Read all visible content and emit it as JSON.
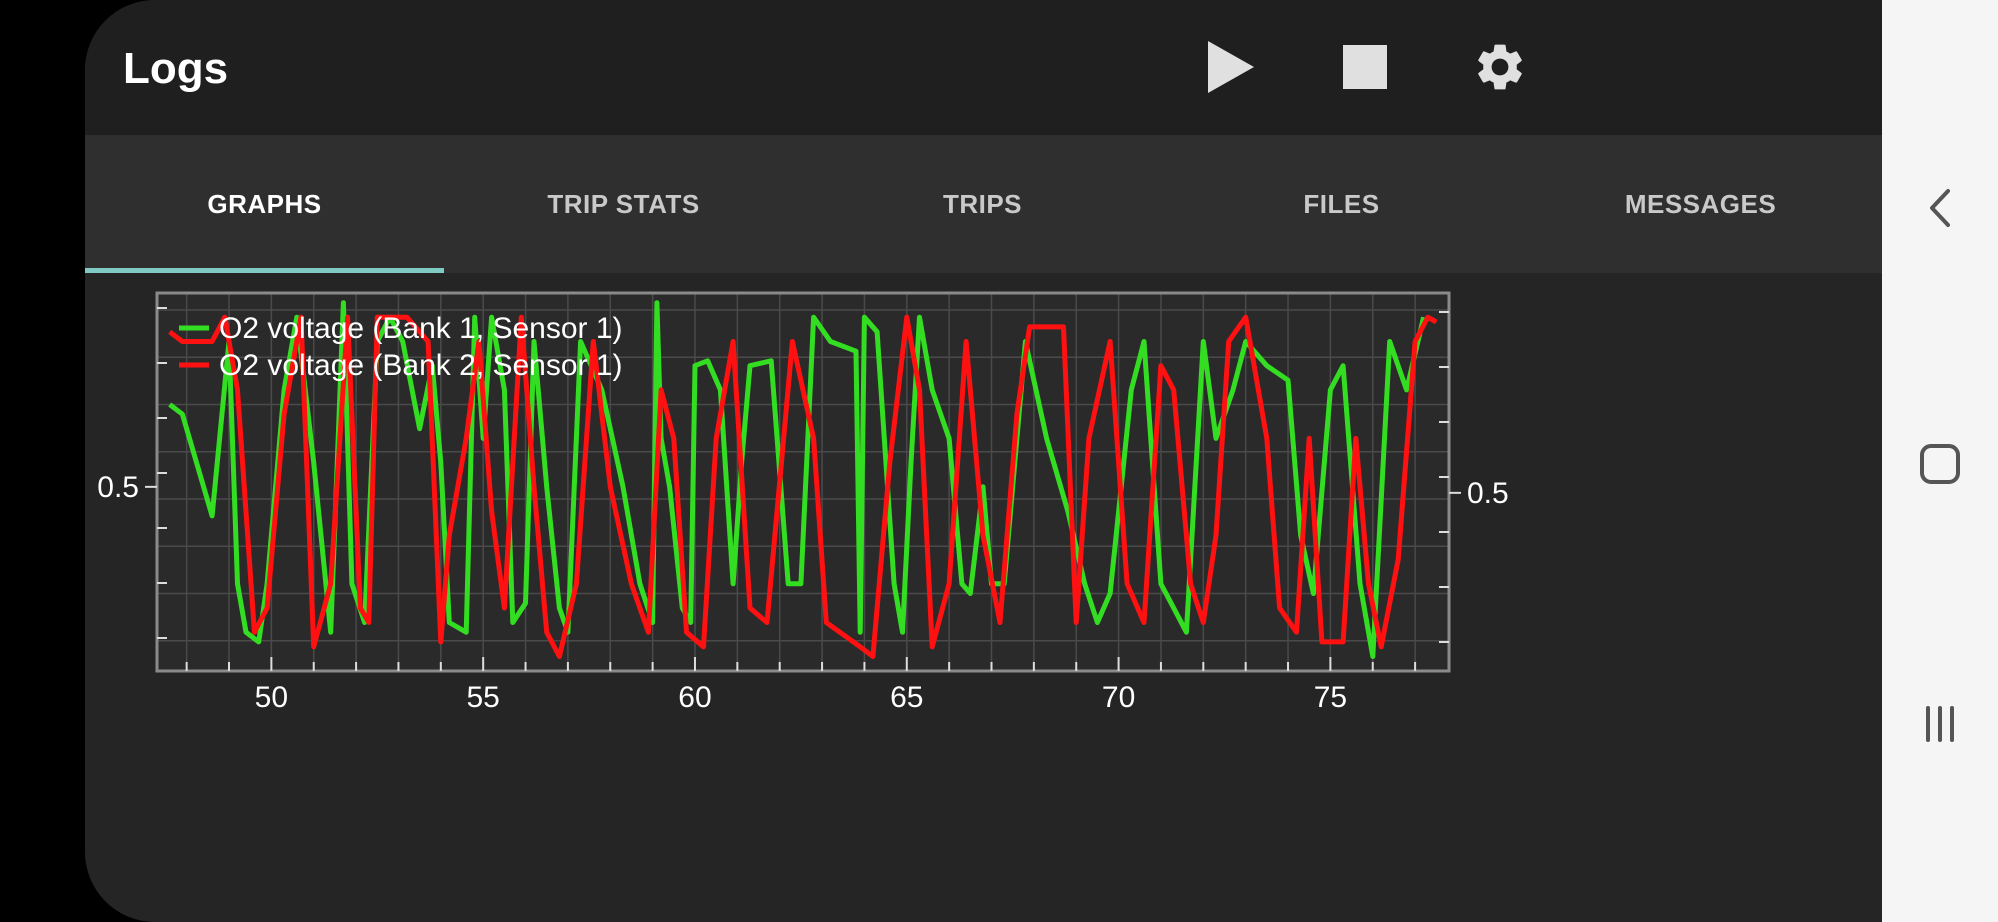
{
  "app": {
    "title": "Logs"
  },
  "actions": {
    "play": "play-icon",
    "stop": "stop-icon",
    "settings": "gear-icon"
  },
  "tabs": [
    {
      "label": "GRAPHS",
      "active": true
    },
    {
      "label": "TRIP STATS",
      "active": false
    },
    {
      "label": "TRIPS",
      "active": false
    },
    {
      "label": "FILES",
      "active": false
    },
    {
      "label": "MESSAGES",
      "active": false
    }
  ],
  "colors": {
    "accent": "#80cbc4",
    "series_green": "#33dd22",
    "series_red": "#ff1111",
    "background": "#252525"
  },
  "nav": {
    "back": "back-chevron-icon",
    "home": "home-square-icon",
    "recents": "recents-icon"
  },
  "chart_data": {
    "type": "line",
    "title": "",
    "xlabel": "",
    "ylabel": "",
    "xlim": [
      47.3,
      77.8
    ],
    "ylim": [
      0.12,
      0.9
    ],
    "x_ticks": [
      50,
      55,
      60,
      65,
      70,
      75
    ],
    "y_ticks_left": [
      0.5
    ],
    "y_ticks_right": [
      0.5
    ],
    "grid": true,
    "legend": "top-left",
    "series": [
      {
        "name": "O2 voltage (Bank 1, Sensor 1)",
        "color": "#33dd22",
        "points": [
          [
            47.6,
            0.67
          ],
          [
            47.9,
            0.65
          ],
          [
            48.6,
            0.44
          ],
          [
            49.0,
            0.8
          ],
          [
            49.2,
            0.3
          ],
          [
            49.4,
            0.2
          ],
          [
            49.7,
            0.18
          ],
          [
            49.9,
            0.3
          ],
          [
            50.3,
            0.7
          ],
          [
            50.6,
            0.85
          ],
          [
            51.0,
            0.55
          ],
          [
            51.4,
            0.2
          ],
          [
            51.7,
            0.88
          ],
          [
            51.9,
            0.3
          ],
          [
            52.2,
            0.22
          ],
          [
            52.5,
            0.8
          ],
          [
            52.8,
            0.85
          ],
          [
            53.1,
            0.8
          ],
          [
            53.5,
            0.62
          ],
          [
            53.8,
            0.75
          ],
          [
            54.0,
            0.55
          ],
          [
            54.2,
            0.22
          ],
          [
            54.6,
            0.2
          ],
          [
            54.8,
            0.85
          ],
          [
            55.0,
            0.6
          ],
          [
            55.2,
            0.85
          ],
          [
            55.5,
            0.7
          ],
          [
            55.7,
            0.22
          ],
          [
            56.0,
            0.26
          ],
          [
            56.2,
            0.8
          ],
          [
            56.5,
            0.5
          ],
          [
            56.8,
            0.25
          ],
          [
            57.0,
            0.2
          ],
          [
            57.3,
            0.8
          ],
          [
            57.8,
            0.7
          ],
          [
            58.3,
            0.5
          ],
          [
            58.7,
            0.3
          ],
          [
            59.0,
            0.22
          ],
          [
            59.1,
            0.88
          ],
          [
            59.2,
            0.6
          ],
          [
            59.4,
            0.5
          ],
          [
            59.7,
            0.25
          ],
          [
            59.9,
            0.22
          ],
          [
            60.0,
            0.75
          ],
          [
            60.3,
            0.76
          ],
          [
            60.6,
            0.7
          ],
          [
            60.9,
            0.3
          ],
          [
            61.1,
            0.55
          ],
          [
            61.3,
            0.75
          ],
          [
            61.8,
            0.76
          ],
          [
            62.2,
            0.3
          ],
          [
            62.5,
            0.3
          ],
          [
            62.8,
            0.85
          ],
          [
            63.2,
            0.8
          ],
          [
            63.8,
            0.78
          ],
          [
            63.9,
            0.2
          ],
          [
            64.0,
            0.85
          ],
          [
            64.3,
            0.82
          ],
          [
            64.7,
            0.3
          ],
          [
            64.9,
            0.2
          ],
          [
            65.1,
            0.55
          ],
          [
            65.3,
            0.85
          ],
          [
            65.6,
            0.7
          ],
          [
            66.0,
            0.6
          ],
          [
            66.3,
            0.3
          ],
          [
            66.5,
            0.28
          ],
          [
            66.8,
            0.5
          ],
          [
            67.0,
            0.3
          ],
          [
            67.3,
            0.3
          ],
          [
            67.8,
            0.8
          ],
          [
            68.3,
            0.6
          ],
          [
            68.8,
            0.45
          ],
          [
            69.2,
            0.3
          ],
          [
            69.5,
            0.22
          ],
          [
            69.8,
            0.28
          ],
          [
            70.3,
            0.7
          ],
          [
            70.6,
            0.8
          ],
          [
            71.0,
            0.3
          ],
          [
            71.3,
            0.25
          ],
          [
            71.6,
            0.2
          ],
          [
            72.0,
            0.8
          ],
          [
            72.3,
            0.6
          ],
          [
            72.7,
            0.7
          ],
          [
            73.0,
            0.8
          ],
          [
            73.5,
            0.75
          ],
          [
            74.0,
            0.72
          ],
          [
            74.3,
            0.4
          ],
          [
            74.6,
            0.28
          ],
          [
            75.0,
            0.7
          ],
          [
            75.3,
            0.75
          ],
          [
            75.7,
            0.3
          ],
          [
            76.0,
            0.15
          ],
          [
            76.4,
            0.8
          ],
          [
            76.8,
            0.7
          ],
          [
            77.2,
            0.85
          ]
        ]
      },
      {
        "name": "O2 voltage (Bank 2, Sensor 1)",
        "color": "#ff1111",
        "points": [
          [
            47.6,
            0.82
          ],
          [
            47.9,
            0.8
          ],
          [
            48.6,
            0.8
          ],
          [
            48.9,
            0.85
          ],
          [
            49.2,
            0.7
          ],
          [
            49.6,
            0.2
          ],
          [
            49.9,
            0.25
          ],
          [
            50.3,
            0.65
          ],
          [
            50.7,
            0.85
          ],
          [
            51.0,
            0.17
          ],
          [
            51.4,
            0.3
          ],
          [
            51.8,
            0.85
          ],
          [
            52.1,
            0.25
          ],
          [
            52.3,
            0.22
          ],
          [
            52.5,
            0.85
          ],
          [
            53.2,
            0.85
          ],
          [
            53.7,
            0.8
          ],
          [
            54.0,
            0.18
          ],
          [
            54.2,
            0.4
          ],
          [
            54.6,
            0.6
          ],
          [
            54.9,
            0.8
          ],
          [
            55.2,
            0.45
          ],
          [
            55.5,
            0.25
          ],
          [
            55.9,
            0.85
          ],
          [
            56.2,
            0.5
          ],
          [
            56.5,
            0.2
          ],
          [
            56.8,
            0.15
          ],
          [
            57.2,
            0.3
          ],
          [
            57.6,
            0.8
          ],
          [
            58.0,
            0.5
          ],
          [
            58.5,
            0.3
          ],
          [
            58.9,
            0.2
          ],
          [
            59.2,
            0.7
          ],
          [
            59.5,
            0.6
          ],
          [
            59.8,
            0.2
          ],
          [
            60.2,
            0.17
          ],
          [
            60.5,
            0.6
          ],
          [
            60.9,
            0.8
          ],
          [
            61.3,
            0.25
          ],
          [
            61.7,
            0.22
          ],
          [
            62.3,
            0.8
          ],
          [
            62.8,
            0.6
          ],
          [
            63.1,
            0.22
          ],
          [
            63.9,
            0.17
          ],
          [
            64.2,
            0.15
          ],
          [
            64.6,
            0.55
          ],
          [
            65.0,
            0.85
          ],
          [
            65.3,
            0.7
          ],
          [
            65.6,
            0.17
          ],
          [
            66.0,
            0.3
          ],
          [
            66.4,
            0.8
          ],
          [
            66.8,
            0.4
          ],
          [
            67.2,
            0.22
          ],
          [
            67.6,
            0.65
          ],
          [
            67.9,
            0.83
          ],
          [
            68.4,
            0.83
          ],
          [
            68.7,
            0.83
          ],
          [
            69.0,
            0.22
          ],
          [
            69.3,
            0.6
          ],
          [
            69.8,
            0.8
          ],
          [
            70.2,
            0.3
          ],
          [
            70.6,
            0.22
          ],
          [
            71.0,
            0.75
          ],
          [
            71.3,
            0.7
          ],
          [
            71.7,
            0.3
          ],
          [
            72.0,
            0.22
          ],
          [
            72.3,
            0.4
          ],
          [
            72.6,
            0.8
          ],
          [
            73.0,
            0.85
          ],
          [
            73.5,
            0.6
          ],
          [
            73.8,
            0.25
          ],
          [
            74.2,
            0.2
          ],
          [
            74.5,
            0.6
          ],
          [
            74.8,
            0.18
          ],
          [
            75.3,
            0.18
          ],
          [
            75.6,
            0.6
          ],
          [
            75.9,
            0.3
          ],
          [
            76.2,
            0.17
          ],
          [
            76.6,
            0.35
          ],
          [
            77.0,
            0.8
          ],
          [
            77.3,
            0.85
          ],
          [
            77.5,
            0.84
          ]
        ]
      }
    ]
  }
}
